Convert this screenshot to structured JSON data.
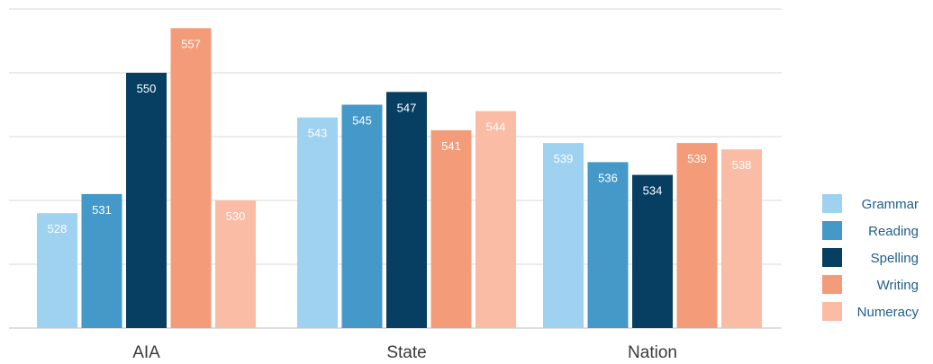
{
  "chart_data": {
    "type": "bar",
    "title": "",
    "xlabel": "",
    "ylabel": "",
    "categories": [
      "AIA",
      "State",
      "Nation"
    ],
    "series": [
      {
        "name": "Grammar",
        "color": "#9fd1f0",
        "values": [
          528,
          543,
          539
        ]
      },
      {
        "name": "Reading",
        "color": "#4499c9",
        "values": [
          531,
          545,
          536
        ]
      },
      {
        "name": "Spelling",
        "color": "#073f63",
        "values": [
          550,
          547,
          534
        ]
      },
      {
        "name": "Writing",
        "color": "#f49c79",
        "values": [
          557,
          541,
          539
        ]
      },
      {
        "name": "Numeracy",
        "color": "#fbbca5",
        "values": [
          530,
          544,
          538
        ]
      }
    ],
    "ylim": [
      510,
      560
    ],
    "grid": true,
    "legend_position": "right",
    "data_labels": true
  }
}
